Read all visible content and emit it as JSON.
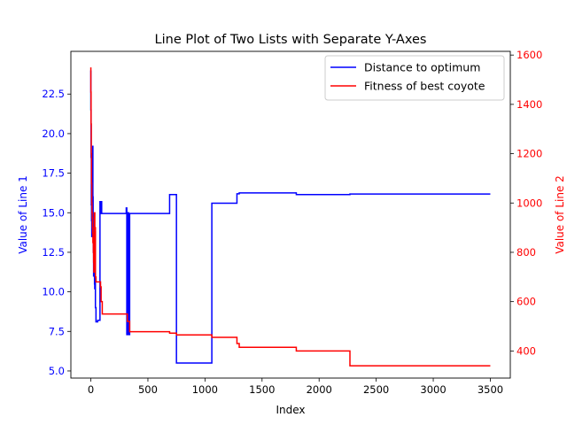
{
  "chart_data": {
    "type": "line",
    "title": "Line Plot of Two Lists with Separate Y-Axes",
    "xlabel": "Index",
    "ylabel_left": "Value of Line 1",
    "ylabel_right": "Value of Line 2",
    "xlim": [
      -175,
      3675
    ],
    "ylim_left": [
      4.55,
      25.2
    ],
    "ylim_right": [
      290,
      1615
    ],
    "xticks": [
      0,
      500,
      1000,
      1500,
      2000,
      2500,
      3000,
      3500
    ],
    "yticks_left": [
      5.0,
      7.5,
      10.0,
      12.5,
      15.0,
      17.5,
      20.0,
      22.5
    ],
    "yticks_right": [
      400,
      600,
      800,
      1000,
      1200,
      1400,
      1600
    ],
    "legend_position": "top-right",
    "grid": false,
    "colors": {
      "left_axis": "#0000ff",
      "right_axis": "#ff0000"
    },
    "series": [
      {
        "name": "Distance to optimum",
        "axis": "left",
        "color": "#0000ff",
        "x": [
          0,
          0,
          2,
          2,
          4,
          4,
          6,
          6,
          8,
          8,
          10,
          10,
          12,
          12,
          14,
          14,
          16,
          16,
          18,
          18,
          20,
          20,
          22,
          22,
          24,
          24,
          26,
          26,
          28,
          28,
          30,
          30,
          32,
          32,
          34,
          34,
          36,
          36,
          38,
          38,
          40,
          40,
          45,
          45,
          50,
          50,
          55,
          55,
          60,
          60,
          80,
          80,
          85,
          85,
          90,
          90,
          95,
          95,
          100,
          100,
          310,
          310,
          315,
          315,
          320,
          320,
          330,
          330,
          340,
          340,
          690,
          690,
          750,
          750,
          1060,
          1060,
          1280,
          1280,
          1300,
          1300,
          1800,
          1800,
          2270,
          2270,
          3500
        ],
        "values": [
          24.0,
          21.5,
          21.5,
          18.5,
          18.5,
          15.5,
          15.5,
          14.5,
          14.5,
          13.5,
          13.5,
          14.5,
          14.5,
          16.5,
          16.5,
          17.5,
          17.5,
          19.2,
          19.2,
          16.0,
          16.0,
          13.5,
          13.5,
          12.5,
          12.5,
          11.0,
          11.0,
          12.5,
          12.5,
          13.5,
          13.5,
          11.5,
          11.5,
          10.5,
          10.5,
          10.2,
          10.2,
          12.0,
          12.0,
          13.8,
          13.8,
          9.0,
          9.0,
          8.1,
          8.1,
          8.1,
          8.1,
          8.1,
          8.1,
          8.2,
          8.2,
          15.7,
          15.7,
          14.95,
          14.95,
          15.7,
          15.7,
          14.95,
          14.95,
          14.95,
          14.95,
          15.3,
          15.3,
          7.3,
          7.3,
          15.0,
          15.0,
          7.3,
          7.3,
          14.95,
          14.95,
          16.15,
          16.15,
          5.5,
          5.5,
          15.6,
          15.6,
          16.2,
          16.2,
          16.25,
          16.25,
          16.15,
          16.15,
          16.18,
          16.18
        ]
      },
      {
        "name": "Fitness of best coyote",
        "axis": "right",
        "color": "#ff0000",
        "x": [
          0,
          0,
          2,
          2,
          4,
          4,
          6,
          6,
          8,
          8,
          10,
          10,
          12,
          12,
          14,
          14,
          16,
          16,
          18,
          18,
          20,
          20,
          22,
          22,
          24,
          24,
          26,
          26,
          28,
          28,
          30,
          30,
          35,
          35,
          40,
          40,
          45,
          45,
          80,
          80,
          85,
          85,
          90,
          90,
          100,
          100,
          310,
          310,
          320,
          320,
          340,
          340,
          690,
          690,
          750,
          750,
          1060,
          1060,
          1260,
          1260,
          1280,
          1280,
          1300,
          1300,
          1800,
          1800,
          2270,
          2270,
          3500
        ],
        "values": [
          1550,
          1450,
          1450,
          1320,
          1320,
          1200,
          1200,
          1080,
          1080,
          1000,
          1000,
          960,
          960,
          940,
          940,
          900,
          900,
          880,
          880,
          840,
          840,
          860,
          860,
          800,
          800,
          760,
          760,
          720,
          720,
          740,
          740,
          960,
          960,
          900,
          900,
          700,
          700,
          680,
          680,
          680,
          680,
          660,
          660,
          600,
          600,
          550,
          550,
          550,
          550,
          520,
          520,
          478,
          478,
          472,
          472,
          465,
          465,
          455,
          455,
          455,
          455,
          430,
          430,
          415,
          415,
          400,
          400,
          340,
          340
        ]
      }
    ]
  }
}
